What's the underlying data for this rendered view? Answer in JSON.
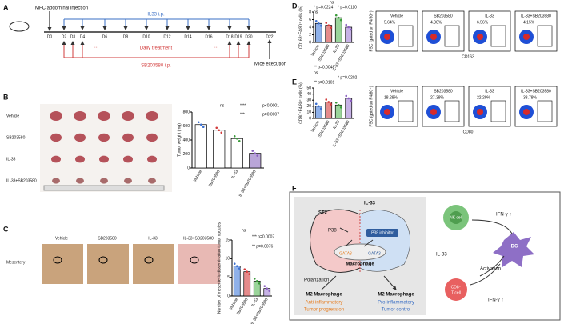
{
  "panels": {
    "A": {
      "letter": "A",
      "injection": "MFC abdominal injection",
      "il33": "IL33 i.p.",
      "days": [
        "D0",
        "D2",
        "D3",
        "D4",
        "D6",
        "D8",
        "D10",
        "D12",
        "D14",
        "D16",
        "D18",
        "D19",
        "D20",
        "D22"
      ],
      "dots": [
        "...",
        "..."
      ],
      "daily": "Daily treatment",
      "sb": "SB203580 i.p.",
      "execution": "Mice execution"
    },
    "B": {
      "letter": "B",
      "groups": [
        "Vehicle",
        "SB203580",
        "IL-33",
        "IL-33+SB203580"
      ],
      "chart": {
        "type": "bar",
        "ylabel": "Tumor weight (mg)",
        "categories": [
          "Vehicle",
          "SB203580",
          "IL-33",
          "IL-33+SB203580"
        ],
        "values": [
          620,
          540,
          420,
          210
        ],
        "colors": [
          "#ffffff",
          "#ffffff",
          "#ffffff",
          "#b9a5d8"
        ],
        "dot_colors": [
          "#3b6fd0",
          "#d23c3c",
          "#3a9a3a",
          "#8a5fc0"
        ],
        "ylim": [
          0,
          800
        ],
        "yticks": [
          0,
          200,
          400,
          600,
          800
        ],
        "annotations": [
          "ns",
          "****",
          "p<0.0001",
          "***",
          "p=0.0007"
        ]
      }
    },
    "C": {
      "letter": "C",
      "groups": [
        "Vehicle",
        "SB203580",
        "IL-33",
        "IL-33+SB203580"
      ],
      "tissue": "Mesentery",
      "chart": {
        "type": "bar",
        "ylabel": "Number of mesenteric dissemination tumor nodules",
        "categories": [
          "Vehicle",
          "SB203580",
          "IL-33",
          "IL-33+SB203580"
        ],
        "values": [
          8,
          6.5,
          4,
          2
        ],
        "colors": [
          "#8fb1ea",
          "#e58b8b",
          "#9ad49a",
          "#c7b2e6"
        ],
        "dot_colors": [
          "#3b6fd0",
          "#d23c3c",
          "#3a9a3a",
          "#8a5fc0"
        ],
        "ylim": [
          0,
          15
        ],
        "yticks": [
          0,
          5,
          10,
          15
        ],
        "annotations": [
          "ns",
          "*** p=0.0007",
          "** p=0.0076"
        ]
      }
    },
    "D": {
      "letter": "D",
      "chart": {
        "type": "bar",
        "ylabel": "CD163⁺F4/80⁺ cells (%)",
        "categories": [
          "Vehicle",
          "SB203580",
          "IL-33",
          "IL-33+SB203580"
        ],
        "values": [
          5,
          4.5,
          6.5,
          4
        ],
        "colors": [
          "#8fb1ea",
          "#e58b8b",
          "#9ad49a",
          "#c7b2e6"
        ],
        "dot_colors": [
          "#3b6fd0",
          "#d23c3c",
          "#3a9a3a",
          "#8a5fc0"
        ],
        "ylim": [
          0,
          8
        ],
        "yticks": [
          0,
          2,
          4,
          6,
          8
        ],
        "annotations": [
          "ns",
          "* p=0.0224",
          "* p=0.0110",
          "ns"
        ]
      },
      "flow": {
        "groups": [
          "Vehicle",
          "SB203580",
          "IL-33",
          "IL-33+SB203580"
        ],
        "percents": [
          "5.64%",
          "4.30%",
          "6.56%",
          "4.15%"
        ],
        "xlabel": "CD163",
        "ylabel": "FSC (gated on F4/80⁺)"
      }
    },
    "E": {
      "letter": "E",
      "chart": {
        "type": "bar",
        "ylabel": "CD80⁺F4/80⁺ cells (%)",
        "categories": [
          "Vehicle",
          "SB203580",
          "IL-33",
          "IL-33+SB203580"
        ],
        "values": [
          20,
          27,
          22,
          33
        ],
        "colors": [
          "#8fb1ea",
          "#e58b8b",
          "#9ad49a",
          "#c7b2e6"
        ],
        "dot_colors": [
          "#3b6fd0",
          "#d23c3c",
          "#3a9a3a",
          "#8a5fc0"
        ],
        "ylim": [
          0,
          50
        ],
        "yticks": [
          0,
          10,
          20,
          30,
          40,
          50
        ],
        "annotations": [
          "** p=0.0048",
          "ns",
          "* p=0.0202",
          "** p=0.0101"
        ]
      },
      "flow": {
        "groups": [
          "Vehicle",
          "SB203580",
          "IL-33",
          "IL-33+SB203580"
        ],
        "percents": [
          "18.28%",
          "27.38%",
          "22.29%",
          "33.78%"
        ],
        "xlabel": "CD80",
        "ylabel": "FSC (gated on F4/80⁺)"
      }
    },
    "F": {
      "letter": "F",
      "il33_top": "IL-33",
      "st2": "ST2",
      "p38": "P38",
      "inhibitor": "P38 inhibitor",
      "gata3_left": "GATA3",
      "gata3_right": "GATA3",
      "macrophage": "Macrophage",
      "polarization": "Polarization",
      "m2_left": "M2 Macrophage",
      "m2_right": "M2 Macrophage",
      "anti": "Anti-inflammatory",
      "progression": "Tumor progression",
      "pro": "Pro-inflammatory",
      "control": "Tumor control",
      "nk": "NK cell",
      "ifn_top": "IFN-γ ↑",
      "dc": "DC",
      "il33_mid": "IL-33",
      "activation": "Activation",
      "cd8": "CD8⁺",
      "tcell": "T cell",
      "ifn_bottom": "IFN-γ ↑"
    }
  }
}
